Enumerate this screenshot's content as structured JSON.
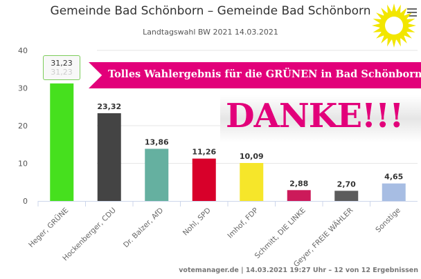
{
  "chart_data": {
    "type": "bar",
    "title": "Gemeinde Bad Schönborn – Gemeinde Bad Schönborn",
    "subtitle": "Landtagswahl BW 2021 14.03.2021",
    "categories": [
      "Heger, GRÜNE",
      "Hockenberger, CDU",
      "Dr. Balzer, AfD",
      "Nohl, SPD",
      "Imhof, FDP",
      "Schmitt, DIE LINKE",
      "Geyer, FREIE WÄHLER",
      "Sonstige"
    ],
    "values": [
      31.23,
      23.32,
      13.86,
      11.26,
      10.09,
      2.88,
      2.7,
      4.65
    ],
    "data_labels": [
      "31,23",
      "23,32",
      "13,86",
      "11,26",
      "10,09",
      "2,88",
      "2,70",
      "4,65"
    ],
    "colors": [
      "#46e01e",
      "#444444",
      "#65b0a0",
      "#d8002a",
      "#f6e62a",
      "#cc1a5a",
      "#5c5c5c",
      "#a7bde3"
    ],
    "yticks": [
      "0",
      "10",
      "20",
      "30",
      "40"
    ],
    "ylim": [
      0,
      40
    ],
    "grid": true,
    "tooltip": {
      "value": "31,23"
    },
    "credits": "votemanager.de | 14.03.2021 19:27 Uhr – 12 von 12 Ergebnissen"
  },
  "overlay": {
    "banner": "Tolles Wahlergebnis für die GRÜNEN in Bad Schönborn",
    "danke": "DANKE!!!",
    "logo": "sunflower-icon"
  }
}
